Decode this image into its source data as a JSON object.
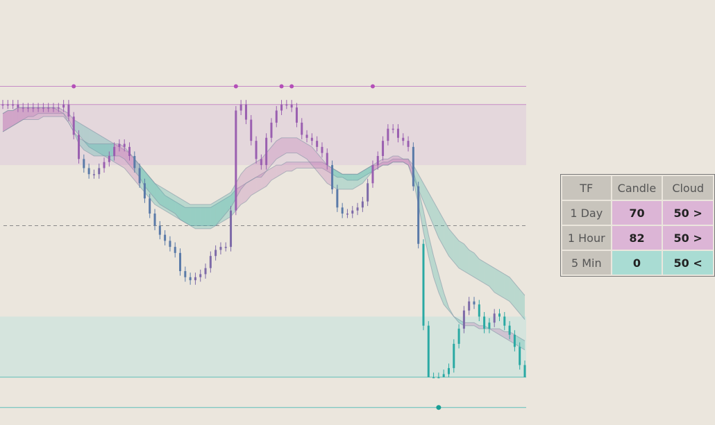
{
  "colors": {
    "background": "#ebe6dd",
    "bull": "#9a5fb0",
    "bear": "#5a7aa8",
    "teal": "#2aa9a3",
    "purple_zone": "#e4d7dc",
    "teal_zone": "#d5e4dd",
    "purple_line": "#c68ac6",
    "teal_line": "#5cbdb8",
    "purple_cell": "#dcb5d6",
    "teal_cell": "#a9dcd3"
  },
  "chart_data": {
    "type": "candlestick",
    "y_range": [
      0,
      100
    ],
    "upper_line": 96,
    "upper_zone": [
      70,
      90
    ],
    "mid_line": 50,
    "lower_zone": [
      0,
      20
    ],
    "lower_line": -10,
    "upper_markers": [
      14,
      46,
      55,
      57,
      73
    ],
    "lower_markers": [
      86
    ],
    "close": [
      90,
      90,
      90,
      89,
      89,
      89,
      89,
      89,
      89,
      89,
      89,
      89,
      90,
      86,
      80,
      72,
      69,
      67,
      67,
      69,
      71,
      73,
      76,
      77,
      76,
      73,
      69,
      64,
      59,
      54,
      50,
      47,
      45,
      43,
      41,
      35,
      33,
      32,
      33,
      34,
      36,
      40,
      42,
      43,
      43,
      55,
      88,
      90,
      85,
      78,
      72,
      70,
      79,
      84,
      88,
      90,
      90,
      89,
      84,
      80,
      79,
      78,
      76,
      74,
      70,
      62,
      56,
      54,
      54,
      55,
      56,
      58,
      64,
      70,
      73,
      78,
      82,
      82,
      79,
      78,
      76,
      63,
      44,
      17,
      0,
      0,
      0,
      1,
      3,
      11,
      16,
      22,
      25,
      24,
      20,
      16,
      18,
      21,
      20,
      17,
      14,
      10,
      4,
      0
    ],
    "cloud_fast_top": [
      87,
      88,
      88,
      89,
      89,
      89,
      89,
      89,
      89,
      89,
      89,
      88,
      87,
      84,
      81,
      79,
      78,
      77,
      77,
      77,
      77,
      77,
      77,
      77,
      76,
      74,
      72,
      70,
      68,
      66,
      64,
      63,
      62,
      61,
      60,
      59,
      58,
      57,
      57,
      57,
      57,
      57,
      58,
      59,
      60,
      61,
      64,
      67,
      69,
      70,
      71,
      72,
      74,
      76,
      78,
      79,
      79,
      79,
      79,
      78,
      77,
      76,
      74,
      72,
      70,
      69,
      68,
      67,
      67,
      67,
      67,
      68,
      69,
      70,
      71,
      72,
      72,
      73,
      73,
      72,
      72,
      68,
      62,
      55,
      47,
      40,
      34,
      28,
      23,
      20,
      18,
      17,
      17,
      17,
      16,
      16,
      16,
      16,
      16,
      15,
      15,
      14,
      13,
      12
    ],
    "cloud_fast_bottom": [
      81,
      82,
      83,
      84,
      85,
      85,
      85,
      85,
      86,
      86,
      86,
      86,
      86,
      84,
      81,
      77,
      75,
      74,
      73,
      73,
      73,
      73,
      73,
      73,
      72,
      70,
      68,
      66,
      63,
      61,
      59,
      57,
      56,
      55,
      54,
      52,
      51,
      50,
      49,
      49,
      49,
      49,
      50,
      52,
      54,
      56,
      59,
      62,
      64,
      65,
      66,
      66,
      68,
      70,
      72,
      73,
      74,
      74,
      74,
      73,
      72,
      70,
      68,
      66,
      64,
      63,
      62,
      62,
      62,
      62,
      63,
      64,
      66,
      68,
      69,
      70,
      70,
      71,
      71,
      71,
      70,
      65,
      57,
      48,
      40,
      33,
      28,
      24,
      22,
      20,
      19,
      18,
      18,
      18,
      17,
      17,
      16,
      15,
      14,
      13,
      12,
      11,
      10,
      9
    ],
    "cloud_slow_top": [
      87,
      88,
      88,
      89,
      89,
      89,
      89,
      89,
      89,
      89,
      89,
      89,
      88,
      87,
      85,
      84,
      83,
      82,
      81,
      80,
      79,
      78,
      77,
      76,
      75,
      74,
      72,
      70,
      68,
      66,
      64,
      62,
      60,
      59,
      58,
      57,
      56,
      56,
      56,
      56,
      56,
      56,
      57,
      58,
      59,
      60,
      62,
      63,
      64,
      65,
      66,
      67,
      68,
      69,
      70,
      70,
      71,
      71,
      71,
      71,
      71,
      71,
      71,
      71,
      70,
      69,
      68,
      67,
      67,
      67,
      67,
      68,
      69,
      70,
      70,
      71,
      71,
      72,
      72,
      72,
      72,
      70,
      67,
      64,
      61,
      58,
      55,
      52,
      49,
      47,
      45,
      44,
      42,
      41,
      39,
      38,
      37,
      36,
      35,
      34,
      33,
      31,
      29,
      27
    ],
    "cloud_slow_bottom": [
      81,
      82,
      83,
      84,
      85,
      86,
      86,
      87,
      87,
      87,
      87,
      87,
      87,
      85,
      82,
      80,
      78,
      76,
      75,
      74,
      73,
      72,
      71,
      70,
      69,
      67,
      65,
      63,
      61,
      59,
      57,
      56,
      55,
      54,
      53,
      52,
      51,
      50,
      50,
      50,
      50,
      50,
      50,
      51,
      52,
      53,
      55,
      57,
      58,
      60,
      61,
      62,
      63,
      65,
      66,
      67,
      68,
      68,
      69,
      69,
      69,
      69,
      69,
      69,
      68,
      67,
      66,
      66,
      65,
      65,
      65,
      66,
      67,
      68,
      69,
      70,
      70,
      71,
      71,
      71,
      70,
      66,
      62,
      58,
      54,
      50,
      46,
      43,
      40,
      38,
      36,
      35,
      34,
      33,
      32,
      31,
      30,
      28,
      27,
      26,
      25,
      23,
      21,
      19
    ]
  },
  "table": {
    "headers": {
      "tf": "TF",
      "candle": "Candle",
      "cloud": "Cloud"
    },
    "rows": [
      {
        "tf": "1 Day",
        "candle": "70",
        "cloud": "50 >",
        "candle_color": "#dcb5d6",
        "cloud_color": "#dcb5d6"
      },
      {
        "tf": "1 Hour",
        "candle": "82",
        "cloud": "50 >",
        "candle_color": "#dcb5d6",
        "cloud_color": "#dcb5d6"
      },
      {
        "tf": "5 Min",
        "candle": "0",
        "cloud": "50 <",
        "candle_color": "#a9dcd3",
        "cloud_color": "#a9dcd3"
      }
    ]
  }
}
